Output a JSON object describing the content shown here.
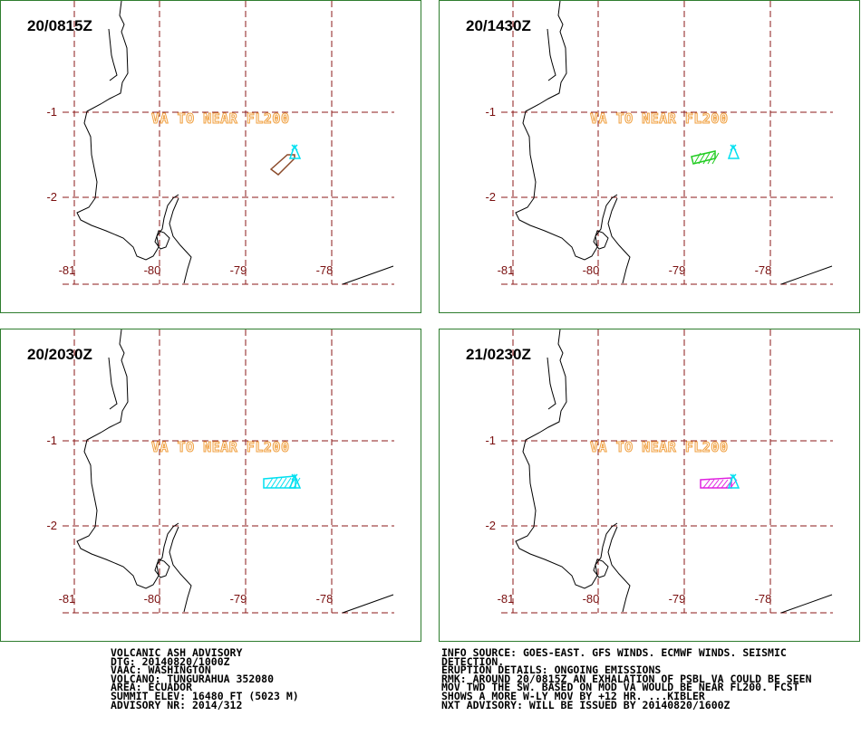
{
  "panels": [
    {
      "title": "20/0815Z",
      "cloud_color": "#8b4a2a",
      "cloud": "a"
    },
    {
      "title": "20/1430Z",
      "cloud_color": "#22cc22",
      "cloud": "b"
    },
    {
      "title": "20/2030Z",
      "cloud_color": "#00e0f0",
      "cloud": "c"
    },
    {
      "title": "21/0230Z",
      "cloud_color": "#e020e0",
      "cloud": "d"
    }
  ],
  "map": {
    "va_label": "VA TO NEAR FL200",
    "lat_labels": [
      "-1",
      "-2"
    ],
    "lon_labels": [
      "-81",
      "-80",
      "-79",
      "-78"
    ],
    "grid_color": "#8b1a1a",
    "coast_color": "#000000",
    "volcano_color": "#00e0f0"
  },
  "advisory_left": [
    "VOLCANIC ASH ADVISORY",
    "DTG: 20140820/1000Z",
    "VAAC: WASHINGTON",
    "VOLCANO: TUNGURAHUA 352080",
    "AREA: ECUADOR",
    "SUMMIT ELEV: 16480 FT (5023 M)",
    "ADVISORY NR: 2014/312"
  ],
  "advisory_right": [
    "INFO SOURCE: GOES-EAST. GFS WINDS. ECMWF WINDS. SEISMIC",
    "DETECTION.",
    "ERUPTION DETAILS: ONGOING EMISSIONS",
    "RMK: AROUND 20/0815Z AN EXHALATION OF PSBL VA COULD BE SEEN",
    "MOV TWD THE SW. BASED ON MOD VA WOULD BE NEAR FL200. FCST",
    "SHOWS A MORE W-LY MOV BY +12 HR. ...KIBLER",
    "NXT ADVISORY: WILL BE ISSUED BY 20140820/1600Z"
  ]
}
